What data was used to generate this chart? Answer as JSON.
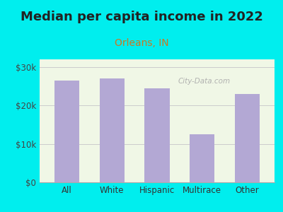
{
  "title": "Median per capita income in 2022",
  "subtitle": "Orleans, IN",
  "categories": [
    "All",
    "White",
    "Hispanic",
    "Multirace",
    "Other"
  ],
  "values": [
    26500,
    27000,
    24500,
    12500,
    23000
  ],
  "bar_color": "#b3a8d4",
  "background_outer": "#00EEEE",
  "background_inner": "#f0f7e6",
  "title_fontsize": 13,
  "subtitle_fontsize": 10,
  "subtitle_color": "#cc7722",
  "ytick_labels": [
    "$0",
    "$10k",
    "$20k",
    "$30k"
  ],
  "ytick_values": [
    0,
    10000,
    20000,
    30000
  ],
  "ylim": [
    0,
    32000
  ],
  "watermark": "City-Data.com"
}
